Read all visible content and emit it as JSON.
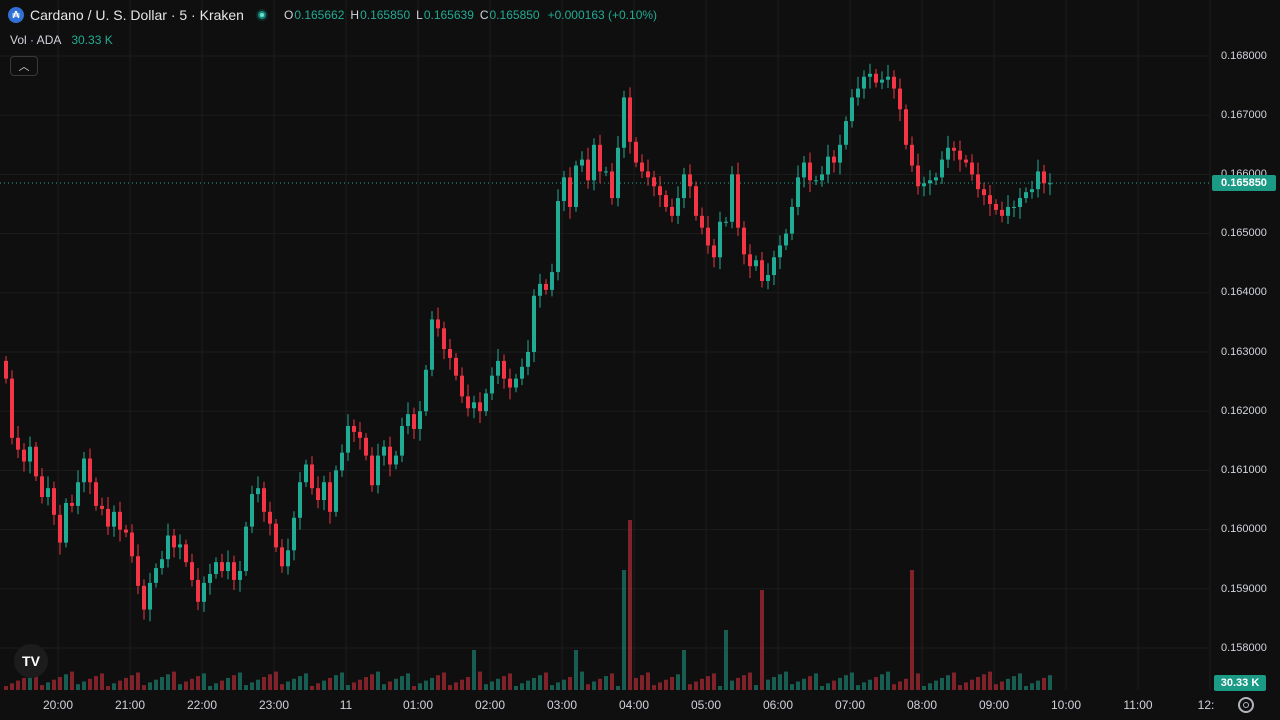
{
  "header": {
    "symbol_icon": "cardano-coin-icon",
    "title": "Cardano / U. S. Dollar · 5 · Kraken",
    "status_icon": "market-open-dot-icon",
    "ohlc": [
      {
        "key": "O",
        "value": "0.165662"
      },
      {
        "key": "H",
        "value": "0.165850"
      },
      {
        "key": "L",
        "value": "0.165639"
      },
      {
        "key": "C",
        "value": "0.165850"
      }
    ],
    "change": "+0.000163 (+0.10%)"
  },
  "volume_legend": {
    "label": "Vol · ADA",
    "value": "30.33 K"
  },
  "collapse_icon": "chevron-up-icon",
  "colors": {
    "up": "#22ab94",
    "down": "#f23645",
    "background": "#0f0f0f",
    "accent": "#1b9a86"
  },
  "price_axis": {
    "labels": [
      "0.168000",
      "0.167000",
      "0.166000",
      "0.165000",
      "0.164000",
      "0.163000",
      "0.162000",
      "0.161000",
      "0.160000",
      "0.159000",
      "0.158000"
    ],
    "current_price": "0.165850"
  },
  "time_axis": {
    "labels": [
      "20:00",
      "21:00",
      "22:00",
      "23:00",
      "11",
      "01:00",
      "02:00",
      "03:00",
      "04:00",
      "05:00",
      "06:00",
      "07:00",
      "08:00",
      "09:00",
      "10:00",
      "11:00",
      "12:"
    ]
  },
  "current_volume": "30.33 K",
  "logo": "tradingview-logo",
  "settings_icon": "gear-icon",
  "chart_data": {
    "type": "candlestick",
    "interval_minutes": 5,
    "price_range": [
      0.158,
      0.168
    ],
    "candles_close": [
      0.16255,
      0.16155,
      0.16135,
      0.16115,
      0.1614,
      0.1609,
      0.16055,
      0.1607,
      0.16025,
      0.15978,
      0.16045,
      0.1604,
      0.1608,
      0.1612,
      0.1608,
      0.1604,
      0.16035,
      0.16005,
      0.1603,
      0.16,
      0.15995,
      0.15955,
      0.15905,
      0.15865,
      0.1591,
      0.15935,
      0.1595,
      0.1599,
      0.1597,
      0.15975,
      0.15945,
      0.15915,
      0.15878,
      0.1591,
      0.15925,
      0.15945,
      0.1593,
      0.15945,
      0.15915,
      0.1593,
      0.16005,
      0.1606,
      0.1607,
      0.1603,
      0.1601,
      0.1597,
      0.15938,
      0.15965,
      0.1602,
      0.1608,
      0.1611,
      0.1607,
      0.1605,
      0.1608,
      0.1603,
      0.161,
      0.1613,
      0.16175,
      0.16165,
      0.16155,
      0.16125,
      0.16075,
      0.16125,
      0.1614,
      0.1611,
      0.16125,
      0.16175,
      0.16195,
      0.1617,
      0.162,
      0.1627,
      0.16355,
      0.1634,
      0.16305,
      0.1629,
      0.1626,
      0.16225,
      0.16205,
      0.16215,
      0.162,
      0.1623,
      0.1626,
      0.16285,
      0.16255,
      0.1624,
      0.16255,
      0.16275,
      0.163,
      0.16395,
      0.16415,
      0.16405,
      0.16435,
      0.16555,
      0.16595,
      0.16545,
      0.16615,
      0.16625,
      0.1659,
      0.1665,
      0.16605,
      0.16605,
      0.1656,
      0.16645,
      0.1673,
      0.16655,
      0.1662,
      0.16605,
      0.16595,
      0.1658,
      0.16565,
      0.16545,
      0.1653,
      0.1656,
      0.166,
      0.1658,
      0.1653,
      0.1651,
      0.1648,
      0.1646,
      0.1652,
      0.1652,
      0.166,
      0.1651,
      0.16465,
      0.16445,
      0.16455,
      0.1642,
      0.1643,
      0.1646,
      0.1648,
      0.165,
      0.16545,
      0.16595,
      0.1662,
      0.1659,
      0.1659,
      0.166,
      0.1663,
      0.1662,
      0.1665,
      0.1669,
      0.1673,
      0.16745,
      0.16765,
      0.1677,
      0.16755,
      0.1676,
      0.16765,
      0.16745,
      0.1671,
      0.1665,
      0.16615,
      0.1658,
      0.16585,
      0.1659,
      0.16595,
      0.16625,
      0.16645,
      0.1664,
      0.16625,
      0.1662,
      0.166,
      0.16575,
      0.16565,
      0.1655,
      0.1654,
      0.1653,
      0.16545,
      0.16545,
      0.1656,
      0.1657,
      0.16575,
      0.16605,
      0.16585,
      0.16585
    ]
  }
}
